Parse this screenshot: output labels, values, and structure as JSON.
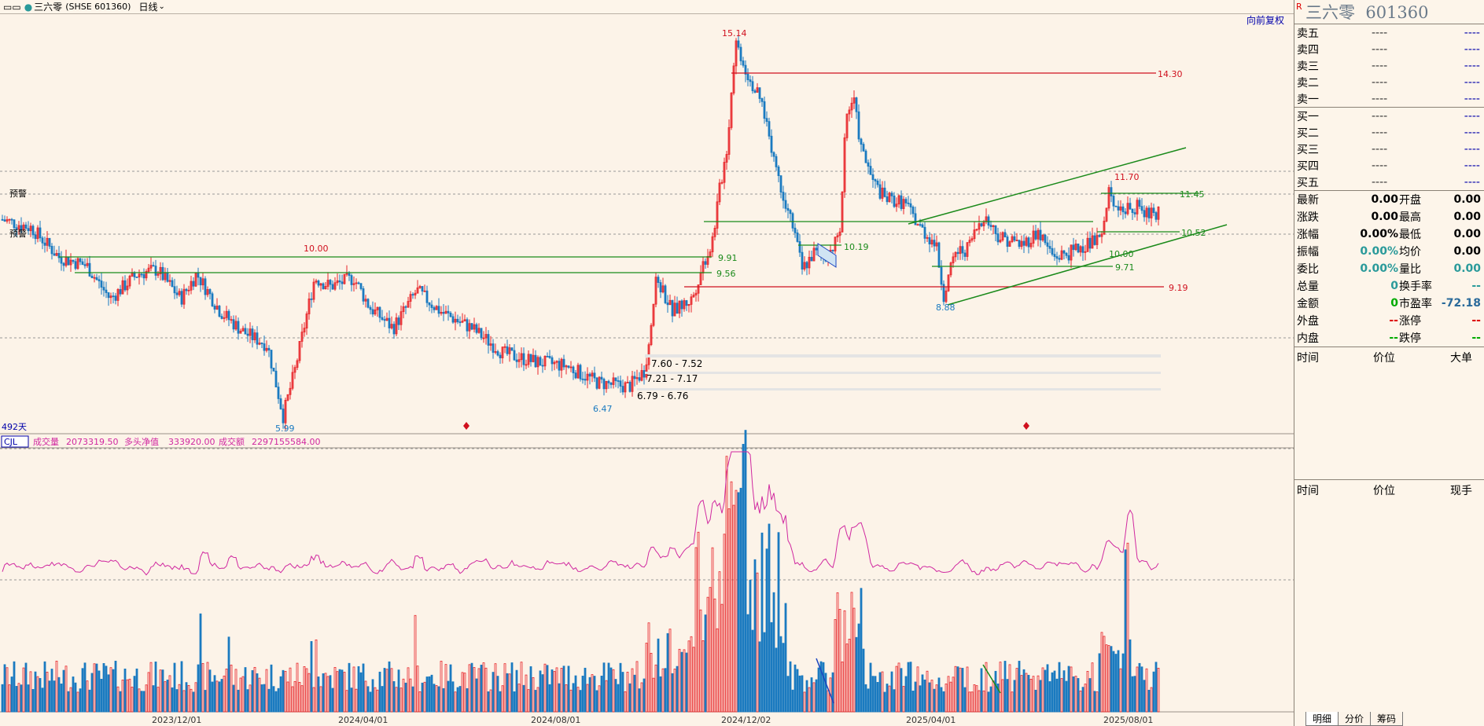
{
  "header": {
    "prefix": "▭▭",
    "stock_name": "三六零",
    "code": "(SHSE 601360)",
    "period": "日线"
  },
  "chart": {
    "top_right_label": "向前复权",
    "days_label": "492天",
    "indicator_name": "CJL",
    "indicator_values": [
      {
        "label": "成交量",
        "value": "2073319.50"
      },
      {
        "label": "多头净值",
        "value": "333920.00"
      },
      {
        "label": "成交额",
        "value": "2297155584.00"
      }
    ],
    "price_labels": [
      {
        "text": "15.14",
        "color": "red"
      },
      {
        "text": "14.30",
        "color": "red"
      },
      {
        "text": "11.70",
        "color": "red"
      },
      {
        "text": "11.45",
        "color": "green"
      },
      {
        "text": "10.52",
        "color": "green"
      },
      {
        "text": "10.00",
        "color": "red"
      },
      {
        "text": "9.91",
        "color": "green"
      },
      {
        "text": "9.56",
        "color": "green"
      },
      {
        "text": "10.19",
        "color": "green"
      },
      {
        "text": "10.00",
        "color": "green"
      },
      {
        "text": "9.71",
        "color": "green"
      },
      {
        "text": "9.19",
        "color": "red"
      },
      {
        "text": "8.88",
        "color": "blue"
      },
      {
        "text": "5.99",
        "color": "blue"
      },
      {
        "text": "6.47",
        "color": "blue"
      }
    ],
    "zones": [
      "7.60 - 7.52",
      "7.21 - 7.17",
      "6.79 - 6.76"
    ],
    "left_marks": [
      "预警",
      "预警"
    ],
    "x_ticks": [
      "2023/12/01",
      "2024/04/01",
      "2024/08/01",
      "2024/12/02",
      "2025/04/01",
      "2025/08/01"
    ]
  },
  "chart_data": {
    "type": "candlestick",
    "x_range": [
      "2023/09",
      "2025/08"
    ],
    "key_prices": {
      "high": 15.14,
      "low": 5.99,
      "swing_low_2024_09": 6.47,
      "swing_low_2025_04": 8.88,
      "recent_high": 11.7
    },
    "horizontal_levels": [
      14.3,
      11.45,
      10.52,
      10.0,
      9.91,
      9.56,
      9.19,
      9.71
    ],
    "support_zones": [
      [
        7.6,
        7.52
      ],
      [
        7.21,
        7.17
      ],
      [
        6.79,
        6.76
      ]
    ],
    "series": [
      {
        "name": "成交量",
        "last": 2073319.5
      },
      {
        "name": "多头净值",
        "last": 333920.0
      },
      {
        "name": "成交额",
        "last": 2297155584.0
      }
    ]
  },
  "panel": {
    "r_mark": "R",
    "title": "三六零  601360",
    "orderbook": [
      {
        "label": "卖五",
        "price": "----",
        "vol": "----"
      },
      {
        "label": "卖四",
        "price": "----",
        "vol": "----"
      },
      {
        "label": "卖三",
        "price": "----",
        "vol": "----"
      },
      {
        "label": "卖二",
        "price": "----",
        "vol": "----"
      },
      {
        "label": "卖一",
        "price": "----",
        "vol": "----"
      },
      {
        "label": "买一",
        "price": "----",
        "vol": "----"
      },
      {
        "label": "买二",
        "price": "----",
        "vol": "----"
      },
      {
        "label": "买三",
        "price": "----",
        "vol": "----"
      },
      {
        "label": "买四",
        "price": "----",
        "vol": "----"
      },
      {
        "label": "买五",
        "price": "----",
        "vol": "----"
      }
    ],
    "stats": [
      {
        "a": "最新",
        "av": "0.00",
        "ac": "#000",
        "b": "开盘",
        "bv": "0.00",
        "bc": "#000"
      },
      {
        "a": "涨跌",
        "av": "0.00",
        "ac": "#000",
        "b": "最高",
        "bv": "0.00",
        "bc": "#000"
      },
      {
        "a": "涨幅",
        "av": "0.00%",
        "ac": "#000",
        "b": "最低",
        "bv": "0.00",
        "bc": "#000"
      },
      {
        "a": "振幅",
        "av": "0.00%",
        "ac": "#2a9a9a",
        "b": "均价",
        "bv": "0.00",
        "bc": "#000"
      },
      {
        "a": "委比",
        "av": "0.00%",
        "ac": "#2a9a9a",
        "b": "量比",
        "bv": "0.00",
        "bc": "#2a9a9a"
      },
      {
        "a": "总量",
        "av": "0",
        "ac": "#2a9a9a",
        "b": "换手率",
        "bv": "--",
        "bc": "#2a9a9a"
      },
      {
        "a": "金额",
        "av": "0",
        "ac": "#0a0",
        "b": "市盈率",
        "bv": "-72.18",
        "bc": "#2a6a9a"
      },
      {
        "a": "外盘",
        "av": "--",
        "ac": "#d00",
        "b": "涨停",
        "bv": "--",
        "bc": "#d00"
      },
      {
        "a": "内盘",
        "av": "--",
        "ac": "#0a0",
        "b": "跌停",
        "bv": "--",
        "bc": "#0a0"
      }
    ],
    "ticks_header": [
      "时间",
      "价位",
      "大单"
    ],
    "trades_header": [
      "时间",
      "价位",
      "现手"
    ],
    "bottom_tabs": [
      "明细",
      "分价",
      "筹码"
    ]
  },
  "colors": {
    "up": "#e8262a",
    "down": "#1a7ac0",
    "green_line": "#1a8a1a",
    "red_line": "#d0101e",
    "ma": "#d028a0"
  }
}
